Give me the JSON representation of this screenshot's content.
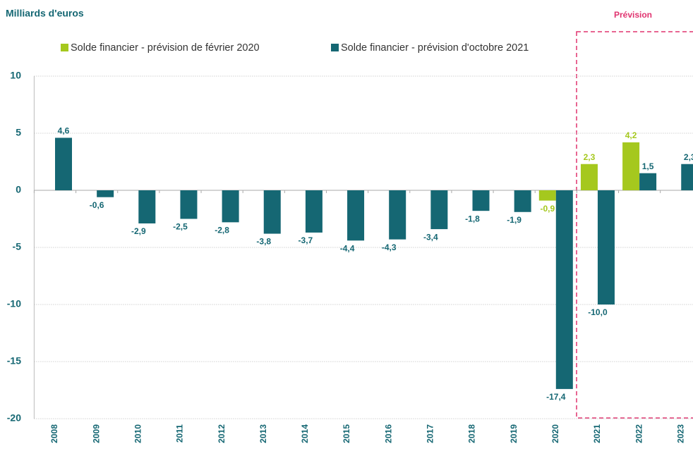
{
  "chart_data": {
    "type": "bar",
    "title": "Milliards d'euros",
    "annotation": "Prévision",
    "categories": [
      "2008",
      "2009",
      "2010",
      "2011",
      "2012",
      "2013",
      "2014",
      "2015",
      "2016",
      "2017",
      "2018",
      "2019",
      "2020",
      "2021",
      "2022",
      "2023"
    ],
    "series": [
      {
        "name": "Solde financier - prévision de février 2020",
        "color": "#a5c81e",
        "values": [
          null,
          null,
          null,
          null,
          null,
          null,
          null,
          null,
          null,
          null,
          null,
          null,
          -0.9,
          2.3,
          4.2,
          null
        ],
        "value_labels": [
          null,
          null,
          null,
          null,
          null,
          null,
          null,
          null,
          null,
          null,
          null,
          null,
          "-0,9",
          "2,3",
          "4,2",
          null
        ]
      },
      {
        "name": "Solde financier - prévision d'octobre 2021",
        "color": "#156773",
        "values": [
          4.6,
          -0.6,
          -2.9,
          -2.5,
          -2.8,
          -3.8,
          -3.7,
          -4.4,
          -4.3,
          -3.4,
          -1.8,
          -1.9,
          -17.4,
          -10.0,
          1.5,
          2.3
        ],
        "value_labels": [
          "4,6",
          "-0,6",
          "-2,9",
          "-2,5",
          "-2,8",
          "-3,8",
          "-3,7",
          "-4,4",
          "-4,3",
          "-3,4",
          "-1,8",
          "-1,9",
          "-17,4",
          "-10,0",
          "1,5",
          "2,3"
        ]
      }
    ],
    "ylim": [
      -20,
      10
    ],
    "yticks": [
      10,
      5,
      0,
      -5,
      -10,
      -15,
      -20
    ],
    "grid": true,
    "legend": "top"
  }
}
